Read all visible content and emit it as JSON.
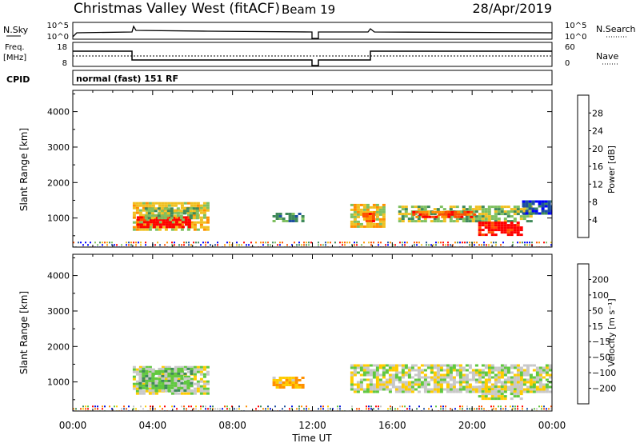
{
  "header": {
    "station": "Christmas Valley West (fitACF)",
    "beam": "Beam 19",
    "date": "28/Apr/2019"
  },
  "panels": {
    "nsky": {
      "label": "N.Sky",
      "ticks": [
        "10^5",
        "10^0"
      ],
      "right_ticks": [
        "10^5",
        "10^0"
      ],
      "right_label": "N.Search"
    },
    "freq": {
      "label1": "Freq.",
      "label2": "[MHz]",
      "ticks": [
        "18",
        "8"
      ],
      "right_ticks": [
        "60",
        "0"
      ],
      "right_label": "Nave"
    },
    "cpid": {
      "label": "CPID",
      "text": "normal (fast) 151 RF"
    }
  },
  "colors": {
    "power": [
      "#0000ff",
      "#1e4fa0",
      "#3f8a5a",
      "#7fc060",
      "#f0c020",
      "#ff9000",
      "#ff5000",
      "#ff0000"
    ],
    "velocity": [
      "#ff0000",
      "#ff5000",
      "#ff9000",
      "#ffcc00",
      "#c8c8c8",
      "#60c840",
      "#3f8a5a",
      "#2050a0",
      "#0010e0"
    ]
  },
  "colorbars": {
    "power": {
      "label": "Power [dB]",
      "ticks": [
        "28",
        "24",
        "20",
        "16",
        "12",
        "8",
        "4"
      ]
    },
    "velocity": {
      "label": "Velocity [m s⁻¹]",
      "ticks": [
        "200",
        "100",
        "50",
        "15",
        "−15",
        "−50",
        "−100",
        "−200"
      ]
    }
  },
  "chart_data": [
    {
      "type": "heatmap",
      "title": "Power",
      "xlabel": "Time UT",
      "ylabel": "Slant Range [km]",
      "xlim": [
        0,
        24
      ],
      "ylim": [
        180,
        4600
      ],
      "y_ticks": [
        1000,
        2000,
        3000,
        4000
      ],
      "x_tick_labels": [
        "00:00",
        "04:00",
        "08:00",
        "12:00",
        "16:00",
        "20:00",
        "00:00"
      ],
      "regions": [
        {
          "t0": 3.0,
          "t1": 6.8,
          "r0": 700,
          "r1": 1450,
          "level": 4
        },
        {
          "t0": 3.2,
          "t1": 5.9,
          "r0": 750,
          "r1": 1050,
          "level": 7
        },
        {
          "t0": 3.6,
          "t1": 6.3,
          "r0": 1000,
          "r1": 1300,
          "level": 3
        },
        {
          "t0": 10.0,
          "t1": 11.6,
          "r0": 900,
          "r1": 1150,
          "level": 2
        },
        {
          "t0": 13.9,
          "t1": 15.6,
          "r0": 750,
          "r1": 1400,
          "level": 4
        },
        {
          "t0": 14.5,
          "t1": 15.1,
          "r0": 900,
          "r1": 1150,
          "level": 6
        },
        {
          "t0": 16.3,
          "t1": 23.0,
          "r0": 900,
          "r1": 1350,
          "level": 3
        },
        {
          "t0": 17.0,
          "t1": 20.2,
          "r0": 1000,
          "r1": 1200,
          "level": 6
        },
        {
          "t0": 20.3,
          "t1": 22.5,
          "r0": 550,
          "r1": 900,
          "level": 7
        },
        {
          "t0": 22.5,
          "t1": 24.0,
          "r0": 1100,
          "r1": 1500,
          "level": 1
        }
      ]
    },
    {
      "type": "heatmap",
      "title": "Velocity",
      "xlabel": "Time UT",
      "ylabel": "Slant Range [km]",
      "xlim": [
        0,
        24
      ],
      "ylim": [
        180,
        4600
      ],
      "y_ticks": [
        1000,
        2000,
        3000,
        4000
      ],
      "x_tick_labels": [
        "00:00",
        "04:00",
        "08:00",
        "12:00",
        "16:00",
        "20:00",
        "00:00"
      ],
      "regions": [
        {
          "t0": 3.0,
          "t1": 6.8,
          "r0": 700,
          "r1": 1450,
          "level": 4
        },
        {
          "t0": 3.3,
          "t1": 5.9,
          "r0": 750,
          "r1": 1400,
          "level": 5
        },
        {
          "t0": 10.0,
          "t1": 11.6,
          "r0": 850,
          "r1": 1150,
          "level": 3
        },
        {
          "t0": 13.9,
          "t1": 24.0,
          "r0": 700,
          "r1": 1500,
          "level": 4
        },
        {
          "t0": 20.3,
          "t1": 22.5,
          "r0": 550,
          "r1": 900,
          "level": 4
        }
      ]
    }
  ]
}
